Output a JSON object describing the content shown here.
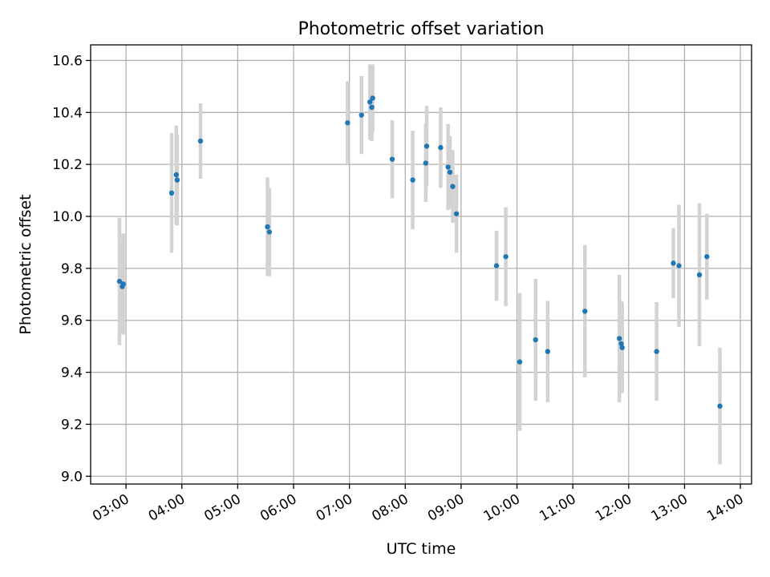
{
  "chart_data": {
    "type": "scatter",
    "title": "Photometric offset variation",
    "xlabel": "UTC time",
    "ylabel": "Photometric offset",
    "x_ticks": [
      "03:00",
      "04:00",
      "05:00",
      "06:00",
      "07:00",
      "08:00",
      "09:00",
      "10:00",
      "11:00",
      "12:00",
      "13:00",
      "14:00"
    ],
    "y_ticks": [
      "9.0",
      "9.2",
      "9.4",
      "9.6",
      "9.8",
      "10.0",
      "10.2",
      "10.4",
      "10.6"
    ],
    "xlim": [
      "02:22",
      "14:12"
    ],
    "ylim": [
      8.97,
      10.66
    ],
    "grid": true,
    "colors": {
      "point": "#1f77b4",
      "errorbar": "#d3d3d3",
      "grid": "#b0b0b0"
    },
    "points": [
      {
        "x": "02:53",
        "y": 9.75,
        "err": 0.245
      },
      {
        "x": "02:56",
        "y": 9.73,
        "err": 0.18
      },
      {
        "x": "02:57",
        "y": 9.74,
        "err": 0.195
      },
      {
        "x": "03:49",
        "y": 10.09,
        "err": 0.23
      },
      {
        "x": "03:54",
        "y": 10.16,
        "err": 0.19
      },
      {
        "x": "03:55",
        "y": 10.14,
        "err": 0.175
      },
      {
        "x": "04:20",
        "y": 10.29,
        "err": 0.145
      },
      {
        "x": "05:32",
        "y": 9.96,
        "err": 0.19
      },
      {
        "x": "05:34",
        "y": 9.94,
        "err": 0.17
      },
      {
        "x": "06:58",
        "y": 10.36,
        "err": 0.16
      },
      {
        "x": "07:13",
        "y": 10.39,
        "err": 0.15
      },
      {
        "x": "07:22",
        "y": 10.44,
        "err": 0.145
      },
      {
        "x": "07:24",
        "y": 10.42,
        "err": 0.13
      },
      {
        "x": "07:25",
        "y": 10.455,
        "err": 0.13
      },
      {
        "x": "07:46",
        "y": 10.22,
        "err": 0.15
      },
      {
        "x": "08:08",
        "y": 10.14,
        "err": 0.19
      },
      {
        "x": "08:22",
        "y": 10.205,
        "err": 0.15
      },
      {
        "x": "08:23",
        "y": 10.27,
        "err": 0.155
      },
      {
        "x": "08:38",
        "y": 10.265,
        "err": 0.155
      },
      {
        "x": "08:46",
        "y": 10.19,
        "err": 0.165
      },
      {
        "x": "08:48",
        "y": 10.17,
        "err": 0.14
      },
      {
        "x": "08:51",
        "y": 10.115,
        "err": 0.14
      },
      {
        "x": "08:55",
        "y": 10.01,
        "err": 0.15
      },
      {
        "x": "09:38",
        "y": 9.81,
        "err": 0.135
      },
      {
        "x": "09:48",
        "y": 9.845,
        "err": 0.19
      },
      {
        "x": "10:03",
        "y": 9.44,
        "err": 0.265
      },
      {
        "x": "10:20",
        "y": 9.525,
        "err": 0.235
      },
      {
        "x": "10:33",
        "y": 9.48,
        "err": 0.195
      },
      {
        "x": "11:13",
        "y": 9.635,
        "err": 0.255
      },
      {
        "x": "11:50",
        "y": 9.53,
        "err": 0.245
      },
      {
        "x": "11:52",
        "y": 9.51,
        "err": 0.165
      },
      {
        "x": "11:53",
        "y": 9.495,
        "err": 0.175
      },
      {
        "x": "12:30",
        "y": 9.48,
        "err": 0.19
      },
      {
        "x": "12:48",
        "y": 9.82,
        "err": 0.135
      },
      {
        "x": "12:54",
        "y": 9.81,
        "err": 0.235
      },
      {
        "x": "13:16",
        "y": 9.775,
        "err": 0.275
      },
      {
        "x": "13:24",
        "y": 9.845,
        "err": 0.165
      },
      {
        "x": "13:38",
        "y": 9.27,
        "err": 0.225
      }
    ]
  }
}
